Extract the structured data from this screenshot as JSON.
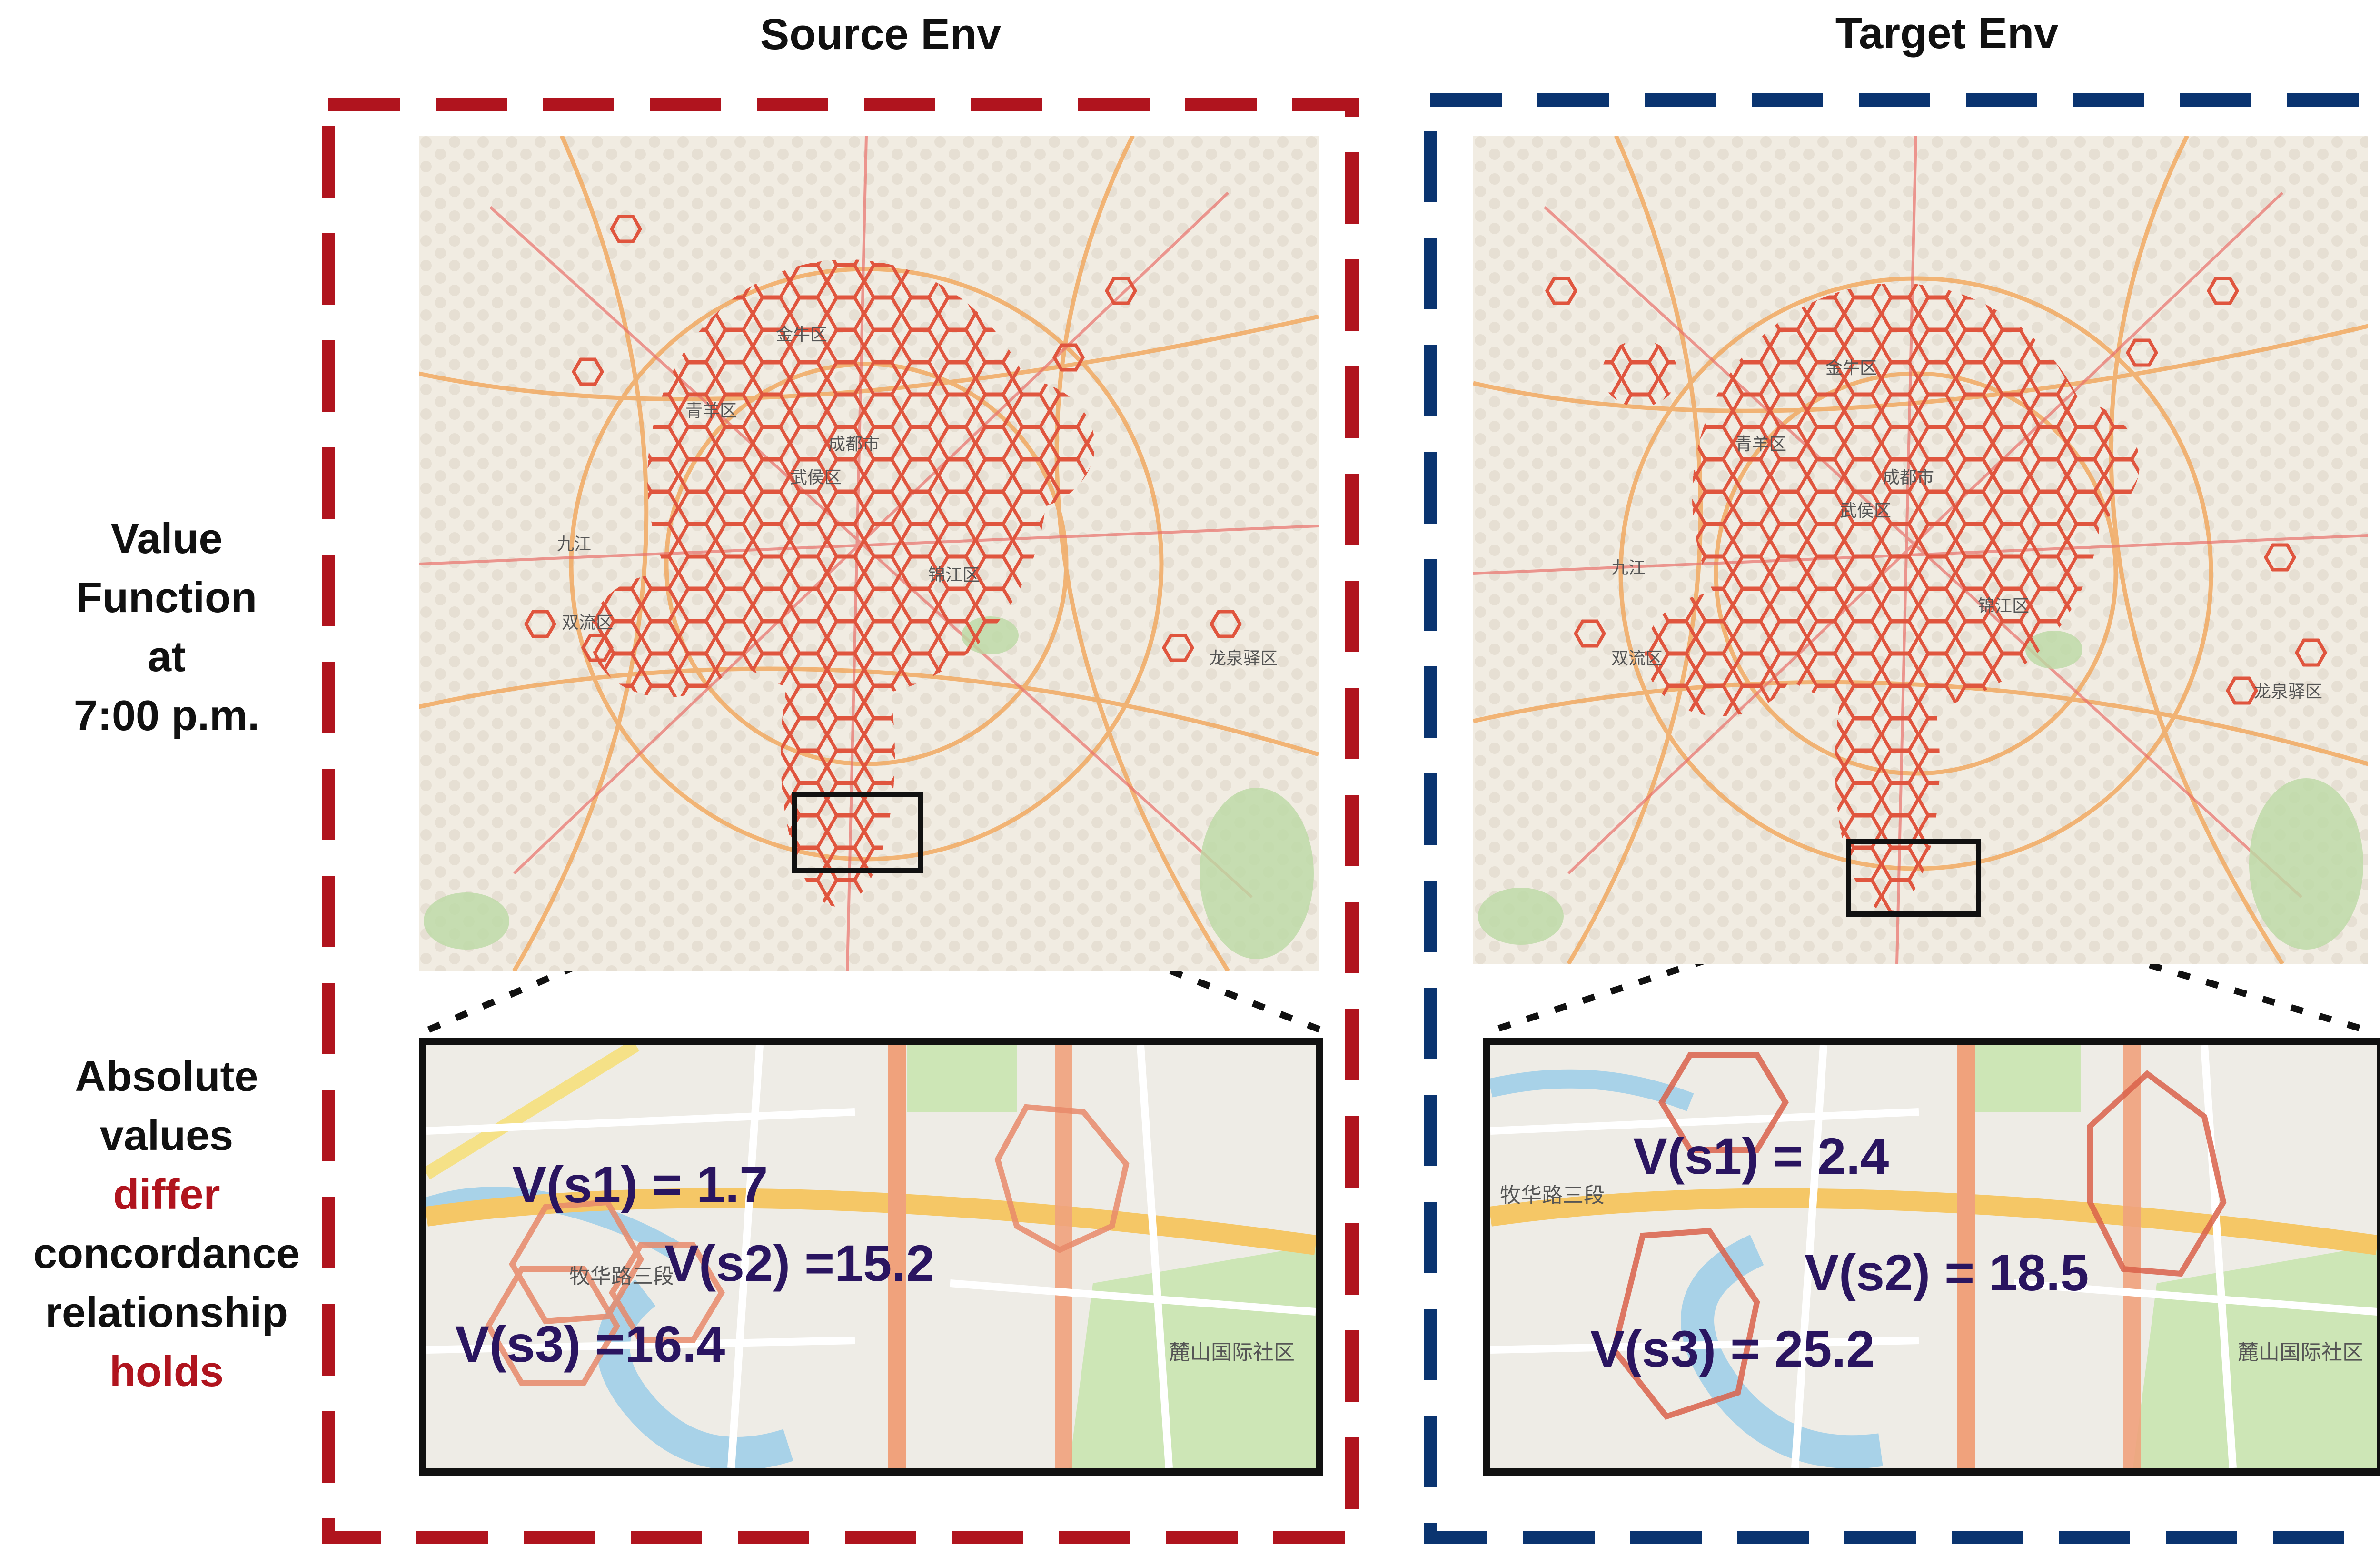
{
  "headers": {
    "source": "Source Env",
    "target": "Target Env"
  },
  "row_labels": {
    "value_function": [
      "Value",
      "Function",
      "at",
      "7:00 p.m."
    ],
    "absolute": [
      "Absolute",
      "values"
    ],
    "differ": "differ",
    "concordance": [
      "concordance",
      "relationship"
    ],
    "holds": "holds"
  },
  "source_values": {
    "s1": "V(s1) = 1.7",
    "s2": "V(s2) =15.2",
    "s3": "V(s3) =16.4"
  },
  "target_values": {
    "s1": "V(s1) = 2.4",
    "s2": "V(s2) = 18.5",
    "s3": "V(s3) = 25.2"
  },
  "colors": {
    "source_border": "#b0141e",
    "target_border": "#0a3470",
    "value_text": "#2a1560",
    "highlight_text": "#b0141e",
    "hex_stroke": "#e0553e"
  },
  "map_labels": {
    "source": [
      "金牛区",
      "青羊区",
      "成都市",
      "武侯区",
      "锦江区",
      "双流区",
      "龙泉驿区",
      "九江",
      "牧华路三段",
      "麓山国际社区"
    ],
    "target": [
      "金牛区",
      "青羊区",
      "成都市",
      "武侯区",
      "锦江区",
      "双流区",
      "龙泉驿区",
      "九江",
      "牧华路三段",
      "麓山国际社区"
    ]
  }
}
